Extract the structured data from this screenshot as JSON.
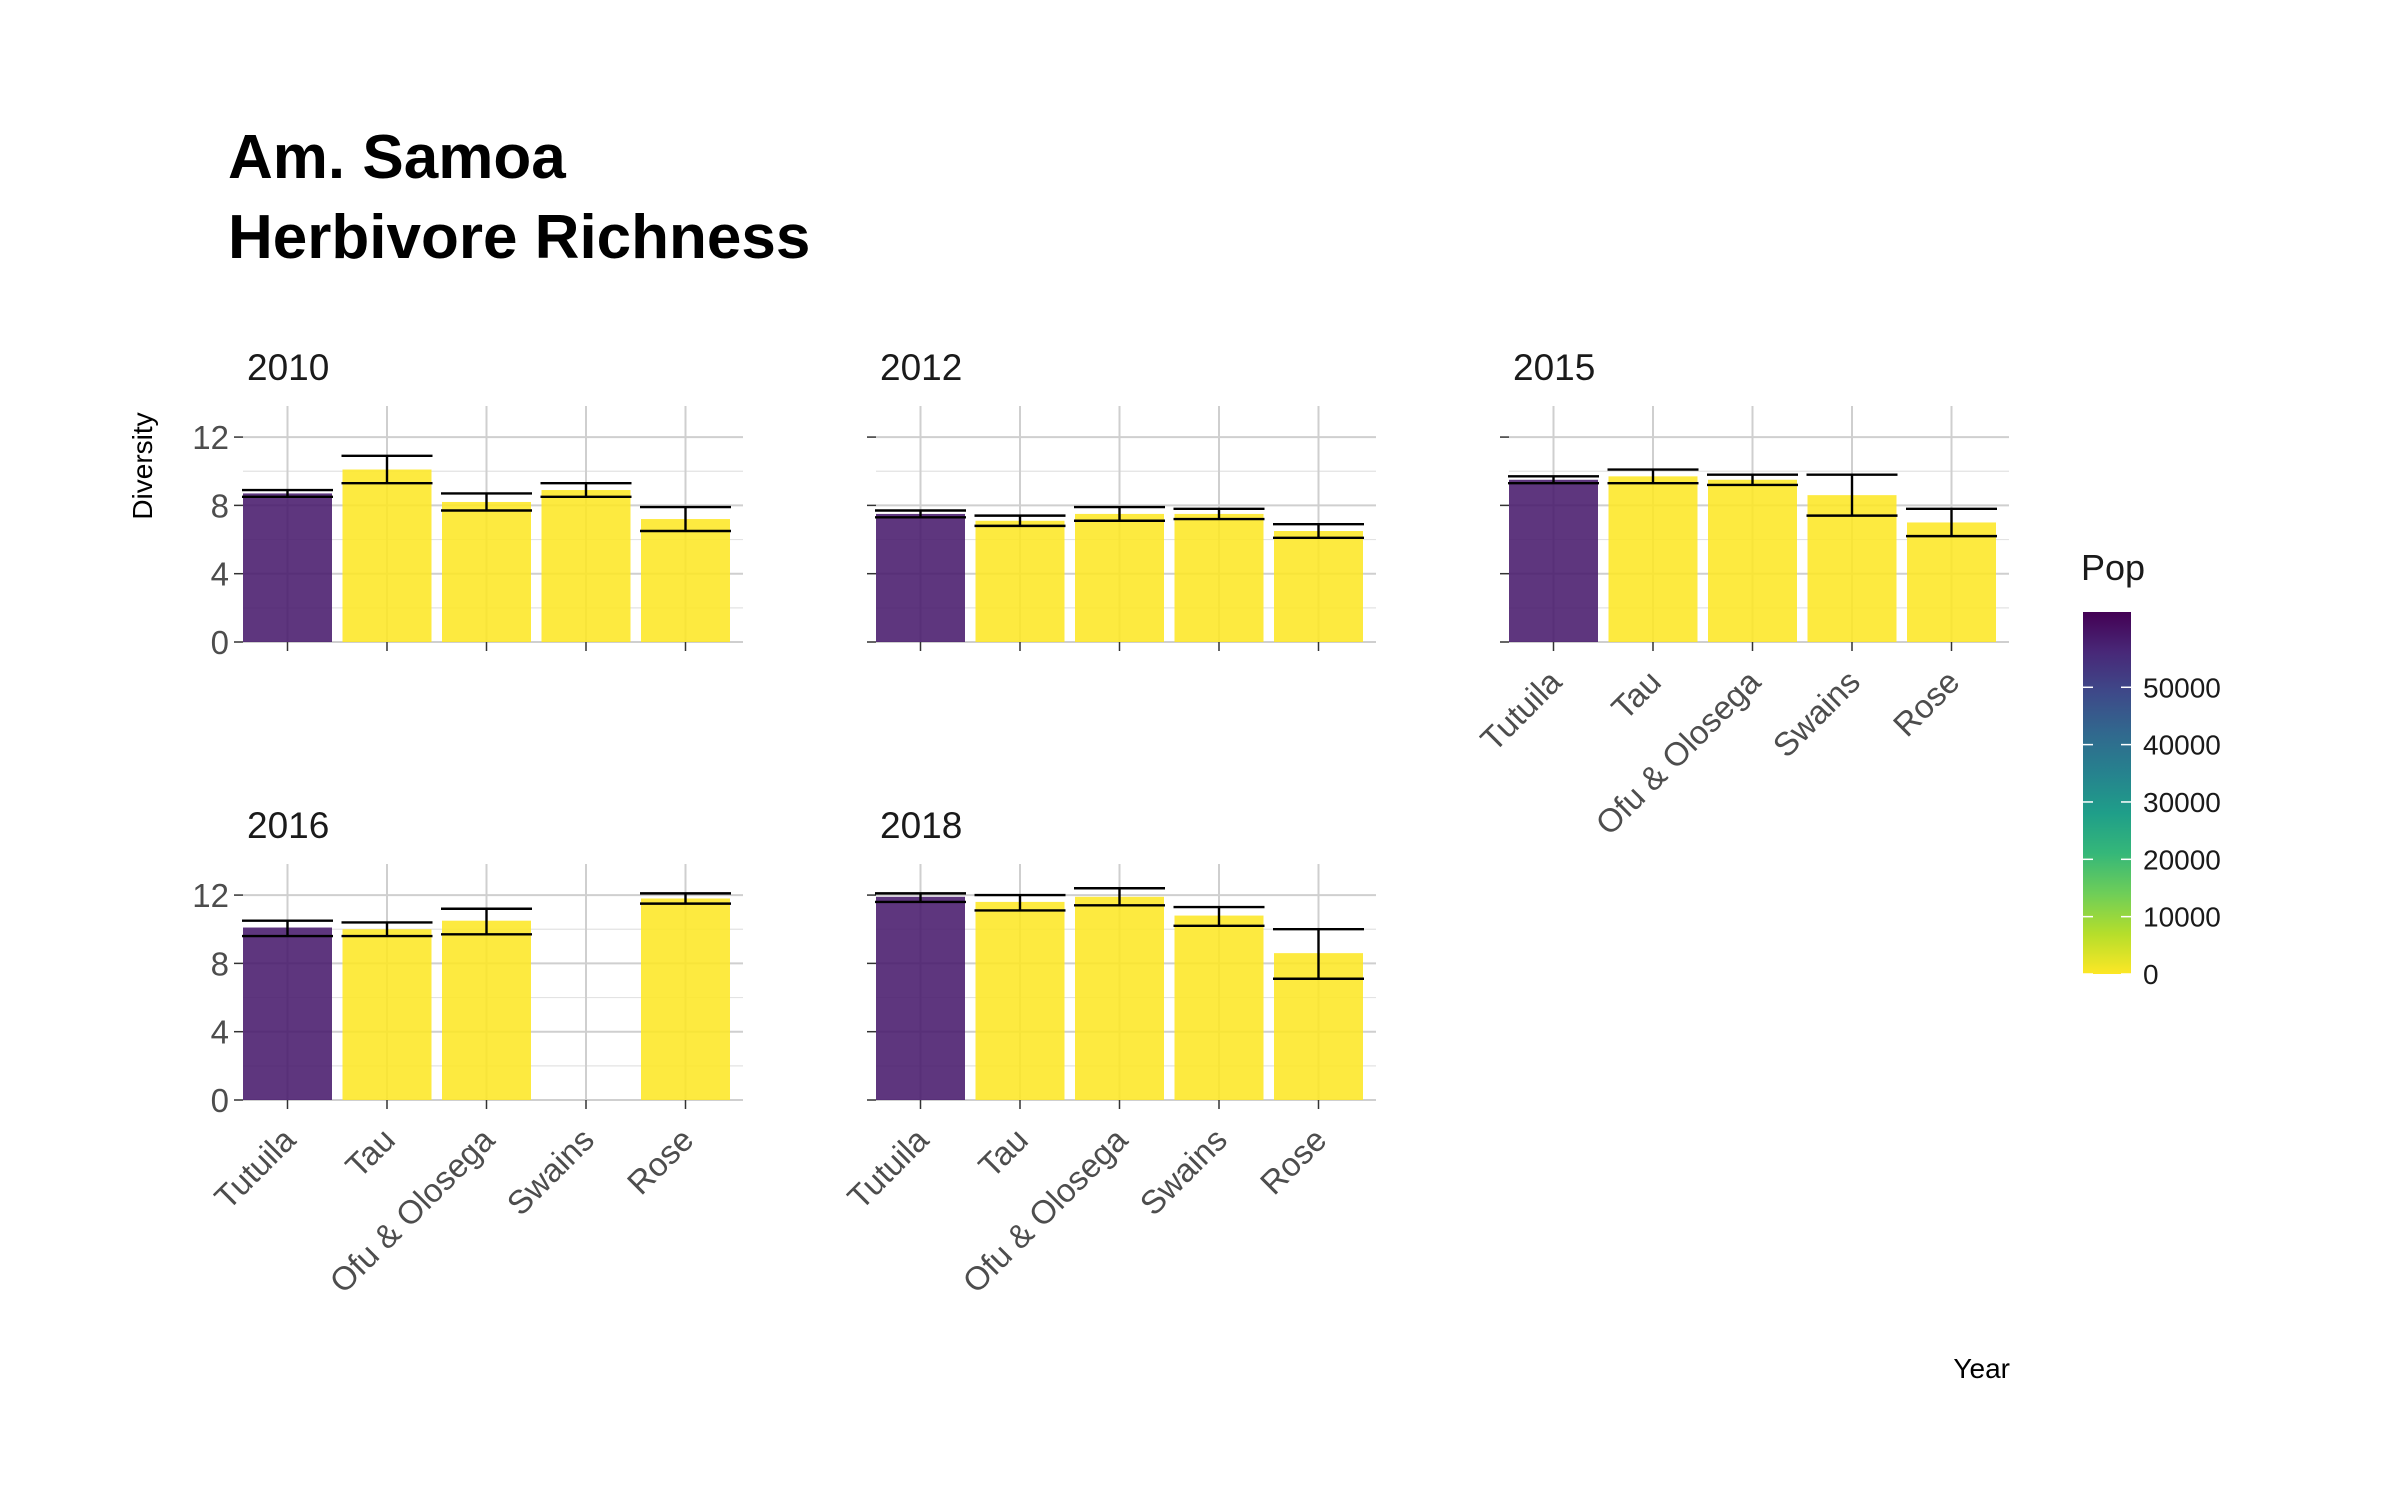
{
  "chart_data": {
    "type": "bar",
    "title_lines": [
      "Am. Samoa",
      "Herbivore Richness"
    ],
    "xlabel": "Year",
    "ylabel": "Diversity",
    "ylim": [
      0,
      13
    ],
    "yticks": [
      0,
      4,
      8,
      12
    ],
    "categories": [
      "Tutuila",
      "Tau",
      "Ofu & Olosega",
      "Swains",
      "Rose"
    ],
    "grid": true,
    "legend": {
      "title": "Pop",
      "placement": "right",
      "ticks": [
        0,
        10000,
        20000,
        30000,
        40000,
        50000
      ],
      "colors": [
        "#fde725",
        "#b5de2b",
        "#6ece58",
        "#35b779",
        "#1f9e89",
        "#26828e",
        "#31688e",
        "#3e4989",
        "#482878",
        "#440154"
      ]
    },
    "colors": {
      "Tutuila": "#481a6c",
      "Tau": "#fde725",
      "Ofu & Olosega": "#fde725",
      "Swains": "#fde725",
      "Rose": "#fde725"
    },
    "panels": [
      {
        "label": "2010",
        "values": [
          8.7,
          10.1,
          8.2,
          8.9,
          7.2
        ],
        "lower": [
          8.5,
          9.3,
          7.7,
          8.5,
          6.5
        ],
        "upper": [
          8.9,
          10.9,
          8.7,
          9.3,
          7.9
        ]
      },
      {
        "label": "2012",
        "values": [
          7.5,
          7.1,
          7.5,
          7.5,
          6.5
        ],
        "lower": [
          7.3,
          6.8,
          7.1,
          7.2,
          6.1
        ],
        "upper": [
          7.7,
          7.4,
          7.9,
          7.8,
          6.9
        ]
      },
      {
        "label": "2015",
        "values": [
          9.5,
          9.7,
          9.5,
          8.6,
          7.0
        ],
        "lower": [
          9.3,
          9.3,
          9.2,
          7.4,
          6.2
        ],
        "upper": [
          9.7,
          10.1,
          9.8,
          9.8,
          7.8
        ]
      },
      {
        "label": "2016",
        "values": [
          10.1,
          10.0,
          10.5,
          null,
          11.8
        ],
        "lower": [
          9.6,
          9.6,
          9.7,
          null,
          11.5
        ],
        "upper": [
          10.5,
          10.4,
          11.2,
          null,
          12.1
        ]
      },
      {
        "label": "2018",
        "values": [
          11.9,
          11.6,
          11.9,
          10.8,
          8.6
        ],
        "lower": [
          11.6,
          11.1,
          11.4,
          10.2,
          7.1
        ],
        "upper": [
          12.1,
          12.0,
          12.4,
          11.3,
          10.0
        ]
      }
    ]
  }
}
